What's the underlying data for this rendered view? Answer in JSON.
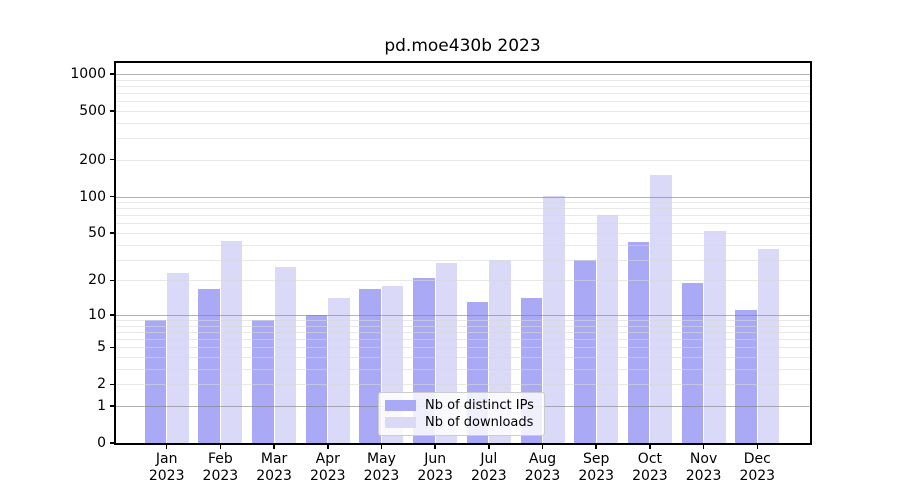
{
  "figure": {
    "title": "pd.moe430b 2023",
    "background": "#ffffff"
  },
  "chart_data": {
    "type": "bar",
    "title": "pd.moe430b 2023",
    "xlabel": "",
    "ylabel": "",
    "yscale": "log1p",
    "ylim": [
      0,
      1280
    ],
    "yticks": [
      0,
      1,
      2,
      5,
      10,
      20,
      50,
      100,
      200,
      500,
      1000
    ],
    "grid": "horizontal, log minor gridlines on",
    "legend_position": "bottom-center",
    "categories": [
      "Jan 2023",
      "Feb 2023",
      "Mar 2023",
      "Apr 2023",
      "May 2023",
      "Jun 2023",
      "Jul 2023",
      "Aug 2023",
      "Sep 2023",
      "Oct 2023",
      "Nov 2023",
      "Dec 2023"
    ],
    "series": [
      {
        "name": "Nb of distinct IPs",
        "color": "#a9a9f5",
        "values": [
          9,
          17,
          9,
          10,
          17,
          21,
          13,
          14,
          30,
          42,
          19,
          11
        ]
      },
      {
        "name": "Nb of downloads",
        "color": "#dadaf8",
        "values": [
          23,
          43,
          26,
          14,
          18,
          28,
          30,
          101,
          70,
          150,
          52,
          37
        ]
      }
    ]
  },
  "colors": {
    "bar_distinct_ips": "#a9a9f5",
    "bar_downloads": "#dadaf8",
    "grid_major": "#808080",
    "grid_minor": "#d9d9d9",
    "spine": "#000000",
    "legend_border": "#cccccc",
    "text": "#000000"
  }
}
